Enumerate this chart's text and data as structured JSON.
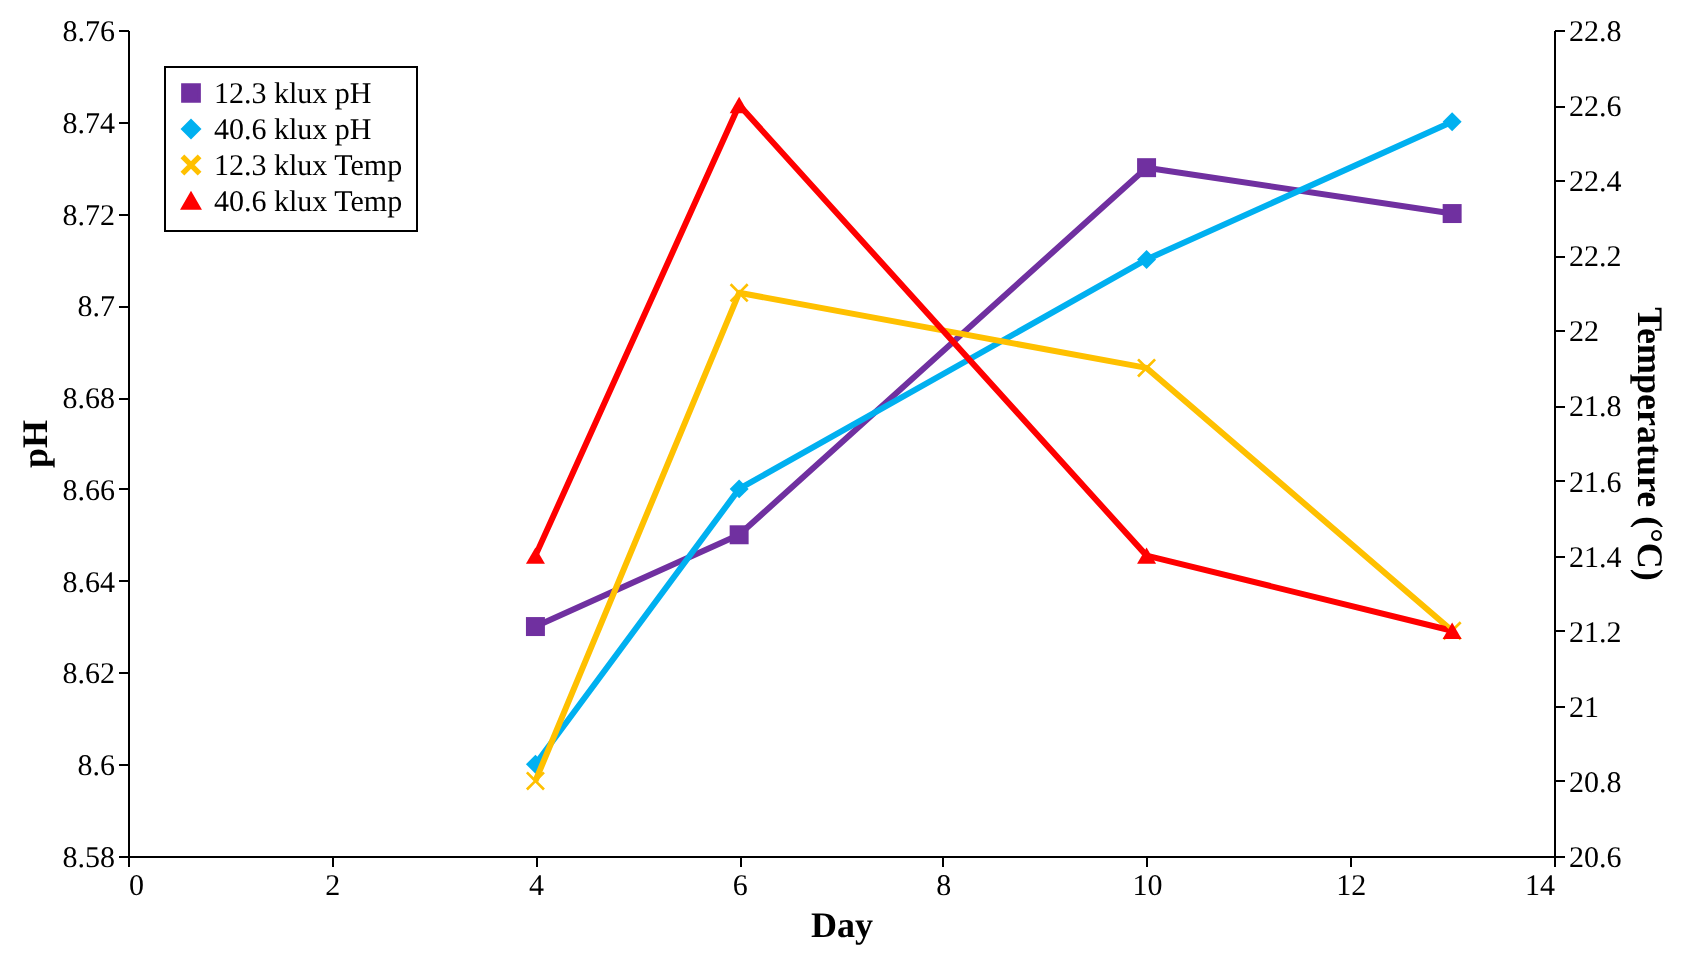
{
  "chart_data": {
    "type": "line",
    "xlabel": "Day",
    "ylabel": "pH",
    "y2label": "Temperature (°C)",
    "x": [
      4,
      6,
      10,
      13
    ],
    "series": [
      {
        "name": "12.3 klux pH",
        "color": "#7030a0",
        "values": [
          8.63,
          8.65,
          8.73,
          8.72
        ],
        "marker": "square"
      },
      {
        "name": "40.6 klux pH",
        "color": "#00b0f0",
        "values": [
          8.6,
          8.66,
          8.71,
          8.74
        ],
        "marker": "diamond"
      },
      {
        "name": "12.3 klux Temp",
        "color": "#ffc000",
        "values": [
          20.8,
          22.1,
          21.9,
          21.2
        ],
        "marker": "cross",
        "axis": "y2"
      },
      {
        "name": "40.6 klux Temp",
        "color": "#ff0000",
        "values": [
          21.4,
          22.6,
          21.4,
          21.2
        ],
        "marker": "triangle",
        "axis": "y2"
      }
    ],
    "xlim": [
      0,
      14
    ],
    "xticks": [
      0,
      2,
      4,
      6,
      8,
      10,
      12,
      14
    ],
    "ylim": [
      8.58,
      8.76
    ],
    "yticks": [
      8.58,
      8.6,
      8.62,
      8.64,
      8.66,
      8.68,
      8.7,
      8.72,
      8.74,
      8.76
    ],
    "y2lim": [
      20.6,
      22.8
    ],
    "y2ticks": [
      20.6,
      20.8,
      21,
      21.2,
      21.4,
      21.6,
      21.8,
      22,
      22.2,
      22.4,
      22.6,
      22.8
    ],
    "grid": false,
    "legend": "top left",
    "line_style": "solid"
  }
}
